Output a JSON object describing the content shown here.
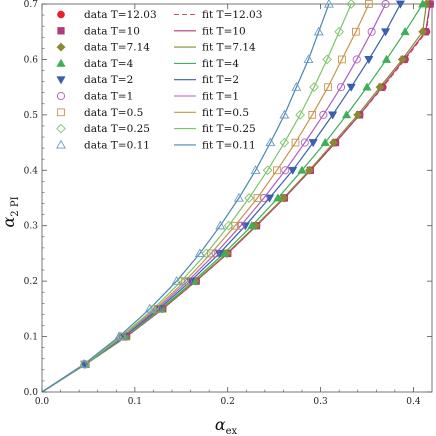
{
  "chart_data": {
    "type": "scatter",
    "xlabel": "α",
    "xlabel_sub": "ex",
    "ylabel": "α",
    "ylabel_sub": "2 PI",
    "xlim": [
      0,
      0.42
    ],
    "ylim": [
      0,
      0.7
    ],
    "xticks": [
      "0.0",
      "0.1",
      "0.2",
      "0.3",
      "0.4"
    ],
    "yticks": [
      "0.0",
      "0.1",
      "0.2",
      "0.3",
      "0.4",
      "0.5",
      "0.6",
      "0.7"
    ],
    "xtick_values": [
      0,
      0.1,
      0.2,
      0.3,
      0.4
    ],
    "ytick_values": [
      0,
      0.1,
      0.2,
      0.3,
      0.4,
      0.5,
      0.6,
      0.7
    ],
    "grid": false,
    "legend_position": "top-left",
    "series": [
      {
        "name": "data T=12.03",
        "fit_name": "fit T=12.03",
        "marker": "circle-filled",
        "color": "#e8222b",
        "fit_color": "#d9534f",
        "fit_dash": "5,3",
        "y": [
          0.05,
          0.1,
          0.15,
          0.2,
          0.25,
          0.3,
          0.35,
          0.4,
          0.45,
          0.5,
          0.55,
          0.6,
          0.65,
          0.7
        ],
        "x": [
          0.047,
          0.091,
          0.13,
          0.166,
          0.2,
          0.231,
          0.261,
          0.289,
          0.316,
          0.342,
          0.367,
          0.391,
          0.414,
          0.418
        ]
      },
      {
        "name": "data T=10",
        "fit_name": "fit T=10",
        "marker": "square-filled",
        "color": "#b03a7a",
        "fit_color": "#b03a7a",
        "fit_dash": "",
        "y": [
          0.05,
          0.1,
          0.15,
          0.2,
          0.25,
          0.3,
          0.35,
          0.4,
          0.45,
          0.5,
          0.55,
          0.6,
          0.65,
          0.7
        ],
        "x": [
          0.047,
          0.091,
          0.13,
          0.166,
          0.2,
          0.231,
          0.261,
          0.289,
          0.316,
          0.342,
          0.366,
          0.39,
          0.413,
          0.418
        ]
      },
      {
        "name": "data T=7.14",
        "fit_name": "fit T=7.14",
        "marker": "diamond-filled",
        "color": "#8a8a2e",
        "fit_color": "#8a8a2e",
        "fit_dash": "",
        "y": [
          0.05,
          0.1,
          0.15,
          0.2,
          0.25,
          0.3,
          0.35,
          0.4,
          0.45,
          0.5,
          0.55,
          0.6,
          0.65,
          0.7
        ],
        "x": [
          0.047,
          0.09,
          0.129,
          0.165,
          0.199,
          0.23,
          0.26,
          0.288,
          0.314,
          0.34,
          0.364,
          0.388,
          0.41,
          0.414
        ]
      },
      {
        "name": "data T=4",
        "fit_name": "fit T=4",
        "marker": "triangle-up-filled",
        "color": "#3fae5a",
        "fit_color": "#3fae5a",
        "fit_dash": "",
        "y": [
          0.05,
          0.1,
          0.15,
          0.2,
          0.25,
          0.3,
          0.35,
          0.4,
          0.45,
          0.5,
          0.55,
          0.6,
          0.65,
          0.7
        ],
        "x": [
          0.047,
          0.09,
          0.128,
          0.163,
          0.196,
          0.226,
          0.254,
          0.28,
          0.305,
          0.328,
          0.35,
          0.371,
          0.391,
          0.41
        ]
      },
      {
        "name": "data T=2",
        "fit_name": "fit T=2",
        "marker": "triangle-down-filled",
        "color": "#3a5fae",
        "fit_color": "#3a5fae",
        "fit_dash": "",
        "y": [
          0.05,
          0.1,
          0.15,
          0.2,
          0.25,
          0.3,
          0.35,
          0.4,
          0.45,
          0.5,
          0.55,
          0.6,
          0.65,
          0.7
        ],
        "x": [
          0.046,
          0.088,
          0.126,
          0.16,
          0.191,
          0.219,
          0.245,
          0.27,
          0.292,
          0.313,
          0.333,
          0.352,
          0.37,
          0.386
        ]
      },
      {
        "name": "data T=1",
        "fit_name": "fit T=1",
        "marker": "circle-open",
        "color": "#b05fc0",
        "fit_color": "#b05fc0",
        "fit_dash": "",
        "y": [
          0.05,
          0.1,
          0.15,
          0.2,
          0.25,
          0.3,
          0.35,
          0.4,
          0.45,
          0.5,
          0.55,
          0.6,
          0.65,
          0.7
        ],
        "x": [
          0.046,
          0.087,
          0.124,
          0.157,
          0.187,
          0.214,
          0.239,
          0.262,
          0.283,
          0.303,
          0.322,
          0.339,
          0.355,
          0.37
        ]
      },
      {
        "name": "data T=0.5",
        "fit_name": "fit T=0.5",
        "marker": "square-open",
        "color": "#c7944a",
        "fit_color": "#c7944a",
        "fit_dash": "",
        "y": [
          0.05,
          0.1,
          0.15,
          0.2,
          0.25,
          0.3,
          0.35,
          0.4,
          0.45,
          0.5,
          0.55,
          0.6,
          0.65,
          0.7
        ],
        "x": [
          0.046,
          0.086,
          0.122,
          0.154,
          0.182,
          0.208,
          0.232,
          0.253,
          0.273,
          0.291,
          0.308,
          0.323,
          0.338,
          0.352
        ]
      },
      {
        "name": "data T=0.25",
        "fit_name": "fit T=0.25",
        "marker": "diamond-open",
        "color": "#7cc46a",
        "fit_color": "#7cc46a",
        "fit_dash": "",
        "y": [
          0.05,
          0.1,
          0.15,
          0.2,
          0.25,
          0.3,
          0.35,
          0.4,
          0.45,
          0.5,
          0.55,
          0.6,
          0.65,
          0.7
        ],
        "x": [
          0.046,
          0.085,
          0.12,
          0.15,
          0.177,
          0.201,
          0.223,
          0.243,
          0.261,
          0.278,
          0.293,
          0.307,
          0.32,
          0.333
        ]
      },
      {
        "name": "data T=0.11",
        "fit_name": "fit T=0.11",
        "marker": "triangle-up-open",
        "color": "#6a9ac9",
        "fit_color": "#4a86b0",
        "fit_dash": "",
        "y": [
          0.05,
          0.1,
          0.15,
          0.2,
          0.25,
          0.3,
          0.35,
          0.4,
          0.45,
          0.5,
          0.55,
          0.6,
          0.65,
          0.7
        ],
        "x": [
          0.045,
          0.083,
          0.116,
          0.145,
          0.17,
          0.192,
          0.212,
          0.23,
          0.246,
          0.261,
          0.274,
          0.287,
          0.298,
          0.309
        ]
      }
    ]
  }
}
